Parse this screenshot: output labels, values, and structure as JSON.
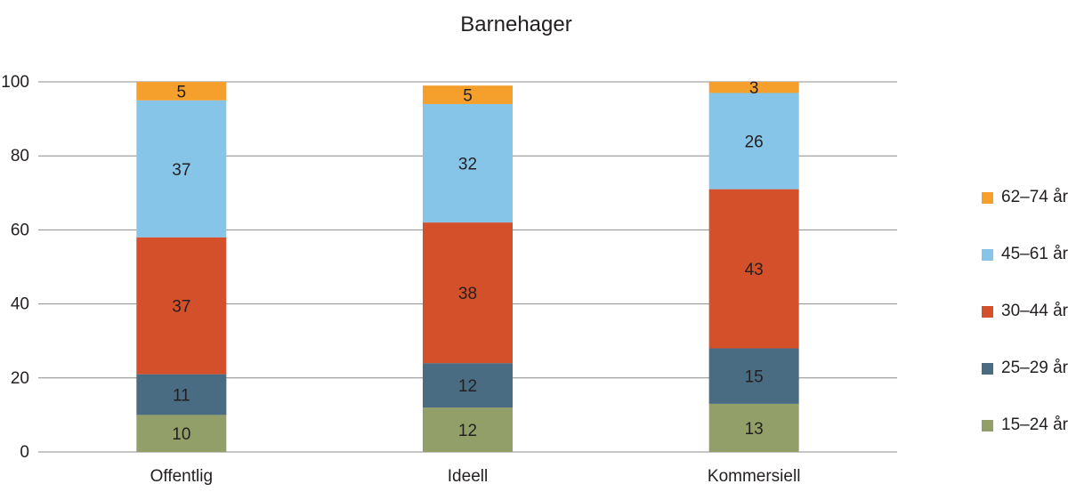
{
  "chart_data": {
    "type": "bar",
    "stacked": true,
    "title": "Barnehager",
    "categories": [
      "Offentlig",
      "Ideell",
      "Kommersiell"
    ],
    "ylim": [
      0,
      100
    ],
    "yticks": [
      0,
      20,
      40,
      60,
      80,
      100
    ],
    "ytick_labels": [
      "0",
      "20",
      "40",
      "60",
      "80",
      "100"
    ],
    "grid": true,
    "legend_position": "right",
    "series": [
      {
        "name": "15–24 år",
        "color": "#939f69",
        "values": [
          10,
          12,
          13
        ]
      },
      {
        "name": "25–29 år",
        "color": "#4a6c82",
        "values": [
          11,
          12,
          15
        ]
      },
      {
        "name": "30–44 år",
        "color": "#d3502b",
        "values": [
          37,
          38,
          43
        ]
      },
      {
        "name": "45–61 år",
        "color": "#87c5e8",
        "values": [
          37,
          32,
          26
        ]
      },
      {
        "name": "62–74 år",
        "color": "#f5a02d",
        "values": [
          5,
          5,
          3
        ]
      }
    ]
  }
}
